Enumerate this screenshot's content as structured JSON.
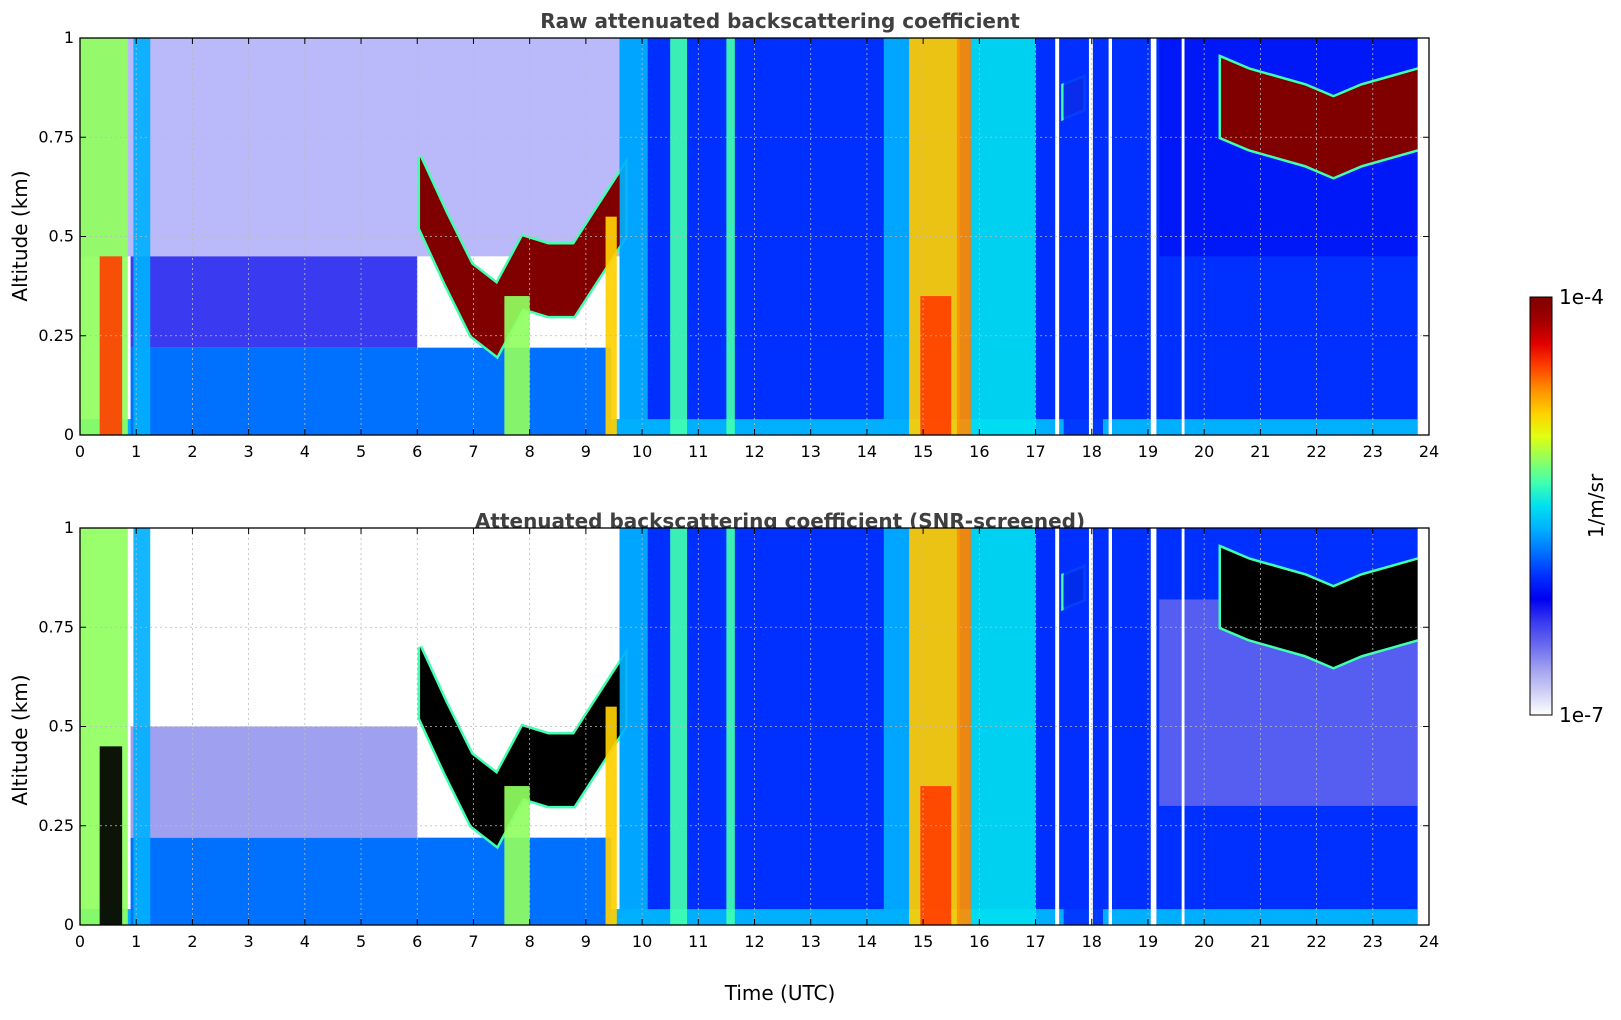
{
  "chart_data": [
    {
      "type": "heatmap",
      "title": "Raw attenuated backscattering coefficient",
      "xlabel": "",
      "ylabel": "Altitude (km)",
      "xlim": [
        0,
        24
      ],
      "ylim": [
        0,
        1
      ],
      "xticks": [
        "0",
        "1",
        "2",
        "3",
        "4",
        "5",
        "6",
        "7",
        "8",
        "9",
        "10",
        "11",
        "12",
        "13",
        "14",
        "15",
        "16",
        "17",
        "18",
        "19",
        "20",
        "21",
        "22",
        "23",
        "24"
      ],
      "yticks": [
        "0",
        "0.25",
        "0.5",
        "0.75",
        "1"
      ],
      "grid": true,
      "layers": [
        {
          "t0": 0.9,
          "t1": 9.45,
          "bottom": 0.0,
          "top": 0.22,
          "level": 0.42
        },
        {
          "t0": 0.9,
          "t1": 6.0,
          "bottom": 0.22,
          "top": 0.45,
          "level": 0.22
        },
        {
          "t0": 6.05,
          "t1": 9.7,
          "base": [
            0.52,
            0.38,
            0.25,
            0.2,
            0.32,
            0.3,
            0.3,
            0.4,
            0.5
          ],
          "thickness": 0.18,
          "level": 0.95
        },
        {
          "t0": 20.3,
          "t1": 23.8,
          "base": [
            0.75,
            0.72,
            0.7,
            0.68,
            0.65,
            0.68,
            0.7,
            0.72
          ],
          "thickness": 0.2,
          "level": 0.95
        },
        {
          "t0": 17.5,
          "t1": 17.85,
          "base": [
            0.8,
            0.82
          ],
          "thickness": 0.08,
          "level": 0.95
        }
      ],
      "columns": [
        {
          "t0": 0.0,
          "t1": 0.85,
          "top": 1.0,
          "level": 0.6
        },
        {
          "t0": 0.35,
          "t1": 0.75,
          "top": 0.45,
          "level": 0.82
        },
        {
          "t0": 0.95,
          "t1": 1.25,
          "top": 1.0,
          "level": 0.45
        },
        {
          "t0": 7.55,
          "t1": 8.0,
          "top": 0.35,
          "level": 0.6
        },
        {
          "t0": 9.35,
          "t1": 9.55,
          "top": 0.55,
          "level": 0.7
        },
        {
          "t0": 9.6,
          "t1": 10.1,
          "top": 1.0,
          "level": 0.45
        },
        {
          "t0": 10.5,
          "t1": 10.8,
          "top": 1.0,
          "level": 0.55
        },
        {
          "t0": 11.5,
          "t1": 11.65,
          "top": 1.0,
          "level": 0.55
        },
        {
          "t0": 14.3,
          "t1": 14.75,
          "top": 1.0,
          "level": 0.45
        },
        {
          "t0": 14.75,
          "t1": 15.65,
          "top": 1.0,
          "level": 0.7
        },
        {
          "t0": 14.95,
          "t1": 15.5,
          "top": 0.35,
          "level": 0.8
        },
        {
          "t0": 15.6,
          "t1": 15.85,
          "top": 1.0,
          "level": 0.75
        },
        {
          "t0": 15.85,
          "t1": 17.0,
          "top": 1.0,
          "level": 0.48
        },
        {
          "t0": 17.5,
          "t1": 18.2,
          "top": 1.0,
          "level": 0.35
        }
      ],
      "gaps": [
        {
          "t0": 17.35,
          "t1": 17.42
        },
        {
          "t0": 17.95,
          "t1": 18.02
        },
        {
          "t0": 18.3,
          "t1": 18.36
        },
        {
          "t0": 19.05,
          "t1": 19.15
        },
        {
          "t0": 19.6,
          "t1": 19.65
        }
      ]
    },
    {
      "type": "heatmap",
      "title": "Attenuated backscattering coefficient (SNR-screened)",
      "xlabel": "Time (UTC)",
      "ylabel": "Altitude (km)",
      "xlim": [
        0,
        24
      ],
      "ylim": [
        0,
        1
      ],
      "xticks": [
        "0",
        "1",
        "2",
        "3",
        "4",
        "5",
        "6",
        "7",
        "8",
        "9",
        "10",
        "11",
        "12",
        "13",
        "14",
        "15",
        "16",
        "17",
        "18",
        "19",
        "20",
        "21",
        "22",
        "23",
        "24"
      ],
      "yticks": [
        "0",
        "0.25",
        "0.5",
        "0.75",
        "1"
      ],
      "grid": true,
      "layers": [
        {
          "t0": 0.9,
          "t1": 9.45,
          "bottom": 0.0,
          "top": 0.22,
          "level": 0.42
        },
        {
          "t0": 0.9,
          "t1": 6.0,
          "bottom": 0.22,
          "top": 0.5,
          "level": 0.15
        },
        {
          "t0": 1.2,
          "t1": 6.0,
          "bottom": 0.5,
          "top": 0.75,
          "level": 0.03
        },
        {
          "t0": 6.05,
          "t1": 9.7,
          "base": [
            0.52,
            0.38,
            0.25,
            0.2,
            0.32,
            0.3,
            0.3,
            0.4,
            0.5
          ],
          "thickness": 0.18,
          "level": 1.0
        },
        {
          "t0": 20.3,
          "t1": 23.8,
          "base": [
            0.75,
            0.72,
            0.7,
            0.68,
            0.65,
            0.68,
            0.7,
            0.72
          ],
          "thickness": 0.2,
          "level": 1.0
        },
        {
          "t0": 17.5,
          "t1": 17.85,
          "base": [
            0.8,
            0.82
          ],
          "thickness": 0.08,
          "level": 1.0
        }
      ],
      "columns": [
        {
          "t0": 0.0,
          "t1": 0.85,
          "top": 1.0,
          "level": 0.6
        },
        {
          "t0": 0.35,
          "t1": 0.75,
          "top": 0.45,
          "level": 1.0
        },
        {
          "t0": 0.95,
          "t1": 1.25,
          "top": 1.0,
          "level": 0.45
        },
        {
          "t0": 7.55,
          "t1": 8.0,
          "top": 0.35,
          "level": 0.6
        },
        {
          "t0": 9.35,
          "t1": 9.55,
          "top": 0.55,
          "level": 0.7
        },
        {
          "t0": 9.6,
          "t1": 10.1,
          "top": 1.0,
          "level": 0.45
        },
        {
          "t0": 10.5,
          "t1": 10.8,
          "top": 1.0,
          "level": 0.55
        },
        {
          "t0": 11.5,
          "t1": 11.65,
          "top": 1.0,
          "level": 0.55
        },
        {
          "t0": 14.3,
          "t1": 14.75,
          "top": 1.0,
          "level": 0.45
        },
        {
          "t0": 14.75,
          "t1": 15.65,
          "top": 1.0,
          "level": 0.7
        },
        {
          "t0": 14.95,
          "t1": 15.5,
          "top": 0.35,
          "level": 0.8
        },
        {
          "t0": 15.6,
          "t1": 15.85,
          "top": 1.0,
          "level": 0.75
        },
        {
          "t0": 15.85,
          "t1": 17.0,
          "top": 1.0,
          "level": 0.48
        },
        {
          "t0": 17.5,
          "t1": 18.2,
          "top": 1.0,
          "level": 0.35
        }
      ],
      "gaps": [
        {
          "t0": 17.35,
          "t1": 17.42
        },
        {
          "t0": 17.95,
          "t1": 18.02
        },
        {
          "t0": 18.3,
          "t1": 18.36
        },
        {
          "t0": 19.05,
          "t1": 19.15
        },
        {
          "t0": 19.6,
          "t1": 19.65
        }
      ]
    }
  ],
  "colorbar": {
    "label": "1/m/sr",
    "max_label": "1e-4",
    "min_label": "1e-7",
    "colors": [
      "#ffffff",
      "#cfcff5",
      "#a0a0f0",
      "#6a6aee",
      "#3a3af0",
      "#0000f0",
      "#0030ff",
      "#0070ff",
      "#00b0ff",
      "#00e0f0",
      "#40ffb0",
      "#90ff60",
      "#e0ff10",
      "#ffd000",
      "#ff9000",
      "#ff4000",
      "#e00000",
      "#a00000",
      "#800000"
    ]
  }
}
